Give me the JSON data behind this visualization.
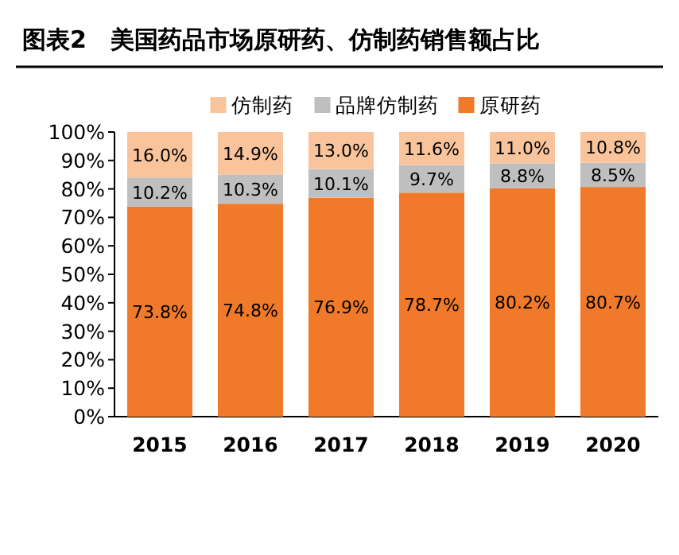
{
  "chart_data": {
    "type": "bar",
    "stacked": true,
    "title": "图表2　美国药品市场原研药、仿制药销售额占比",
    "categories": [
      "2015",
      "2016",
      "2017",
      "2018",
      "2019",
      "2020"
    ],
    "series": [
      {
        "name": "原研药",
        "color": "#f07a2a",
        "values": [
          73.8,
          74.8,
          76.9,
          78.7,
          80.2,
          80.7
        ],
        "value_labels": [
          "73.8%",
          "74.8%",
          "76.9%",
          "78.7%",
          "80.2%",
          "80.7%"
        ]
      },
      {
        "name": "品牌仿制药",
        "color": "#bfbfbf",
        "values": [
          10.2,
          10.3,
          10.1,
          9.7,
          8.8,
          8.5
        ],
        "value_labels": [
          "10.2%",
          "10.3%",
          "10.1%",
          "9.7%",
          "8.8%",
          "8.5%"
        ]
      },
      {
        "name": "仿制药",
        "color": "#f9c49c",
        "values": [
          16.0,
          14.9,
          13.0,
          11.6,
          11.0,
          10.8
        ],
        "value_labels": [
          "16.0%",
          "14.9%",
          "13.0%",
          "11.6%",
          "11.0%",
          "10.8%"
        ]
      }
    ],
    "ylim": [
      0,
      100
    ],
    "yticks": [
      {
        "value": 0,
        "label": "0%"
      },
      {
        "value": 10,
        "label": "10%"
      },
      {
        "value": 20,
        "label": "20%"
      },
      {
        "value": 30,
        "label": "30%"
      },
      {
        "value": 40,
        "label": "40%"
      },
      {
        "value": 50,
        "label": "50%"
      },
      {
        "value": 60,
        "label": "60%"
      },
      {
        "value": 70,
        "label": "70%"
      },
      {
        "value": 80,
        "label": "80%"
      },
      {
        "value": 90,
        "label": "90%"
      },
      {
        "value": 100,
        "label": "100%"
      }
    ],
    "legend": "top",
    "grid": false
  }
}
